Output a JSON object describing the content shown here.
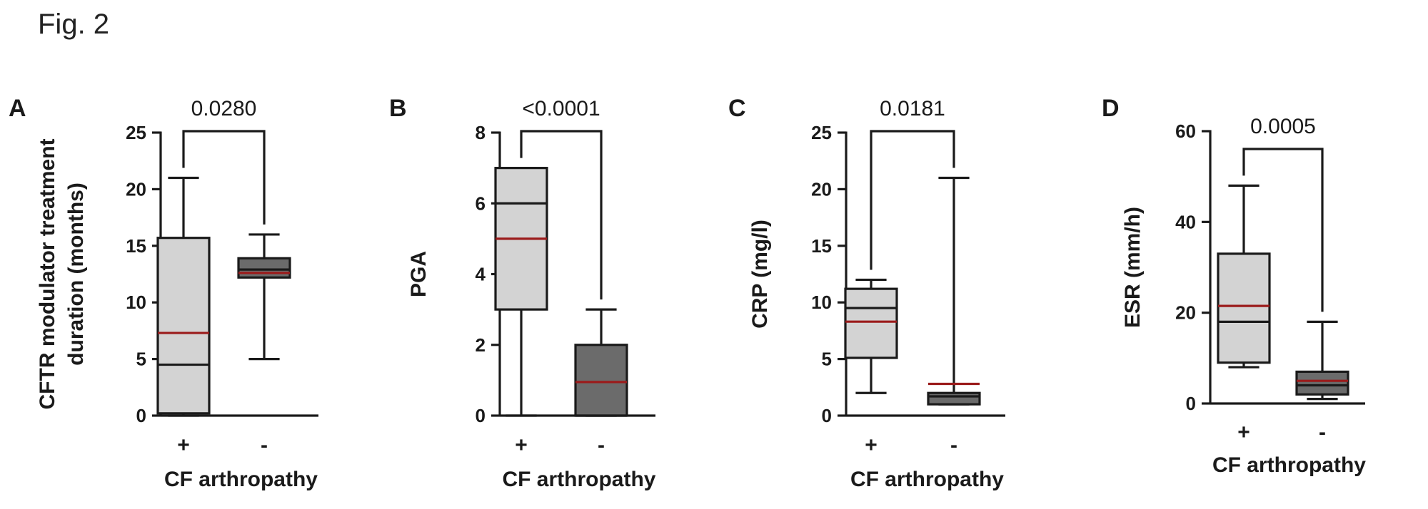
{
  "figure_title": "Fig. 2",
  "colors": {
    "light_box": "#d3d3d3",
    "dark_box": "#6b6b6b",
    "mean_line": "#9b1b1b",
    "ink": "#1a1a1a"
  },
  "chart_data": [
    {
      "type": "box",
      "panel": "A",
      "ylabel": [
        "CFTR modulator treatment",
        "duration (months)"
      ],
      "xlabel": "CF arthropathy",
      "ylim": [
        0,
        25
      ],
      "yticks": [
        0,
        5,
        10,
        15,
        20,
        25
      ],
      "categories": [
        "+",
        "-"
      ],
      "series": [
        {
          "category": "+",
          "min": 0,
          "q1": 0.2,
          "median": 4.5,
          "mean": 7.3,
          "q3": 15.7,
          "max": 21
        },
        {
          "category": "-",
          "min": 5,
          "q1": 12.2,
          "median": 12.9,
          "mean": 12.6,
          "q3": 13.9,
          "max": 16
        }
      ],
      "comparison": {
        "p_value": "0.0280"
      }
    },
    {
      "type": "box",
      "panel": "B",
      "ylabel": [
        "PGA"
      ],
      "xlabel": "CF arthropathy",
      "ylim": [
        0,
        8
      ],
      "yticks": [
        0,
        2,
        4,
        6,
        8
      ],
      "categories": [
        "+",
        "-"
      ],
      "series": [
        {
          "category": "+",
          "min": 0,
          "q1": 3,
          "median": 6,
          "mean": 5,
          "q3": 7,
          "max": 7
        },
        {
          "category": "-",
          "min": 0,
          "q1": 0,
          "median": 0,
          "mean": 0.95,
          "q3": 2,
          "max": 3
        }
      ],
      "comparison": {
        "p_value": "<0.0001"
      }
    },
    {
      "type": "box",
      "panel": "C",
      "ylabel": [
        "CRP (mg/l)"
      ],
      "xlabel": "CF arthropathy",
      "ylim": [
        0,
        25
      ],
      "yticks": [
        0,
        5,
        10,
        15,
        20,
        25
      ],
      "categories": [
        "+",
        "-"
      ],
      "series": [
        {
          "category": "+",
          "min": 2,
          "q1": 5.1,
          "median": 9.5,
          "mean": 8.3,
          "q3": 11.2,
          "max": 12
        },
        {
          "category": "-",
          "min": 1,
          "q1": 1,
          "median": 1.7,
          "mean": 2.8,
          "q3": 2,
          "max": 21
        }
      ],
      "comparison": {
        "p_value": "0.0181"
      }
    },
    {
      "type": "box",
      "panel": "D",
      "ylabel": [
        "ESR (mm/h)"
      ],
      "xlabel": "CF arthropathy",
      "ylim": [
        0,
        60
      ],
      "yticks": [
        0,
        20,
        40,
        60
      ],
      "categories": [
        "+",
        "-"
      ],
      "series": [
        {
          "category": "+",
          "min": 8,
          "q1": 9,
          "median": 18,
          "mean": 21.5,
          "q3": 33,
          "max": 48
        },
        {
          "category": "-",
          "min": 1,
          "q1": 2,
          "median": 4,
          "mean": 5,
          "q3": 7,
          "max": 18
        }
      ],
      "comparison": {
        "p_value": "0.0005"
      }
    }
  ]
}
